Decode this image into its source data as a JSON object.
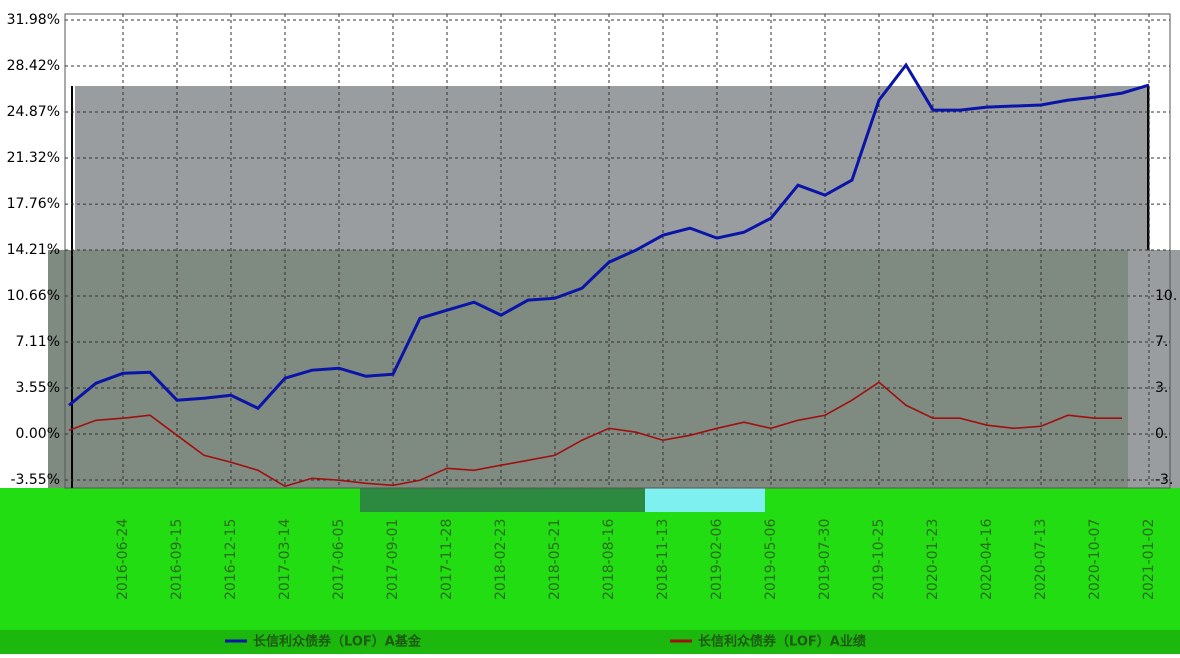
{
  "chart_data": {
    "type": "line",
    "categories": [
      null,
      null,
      "2016-06-24",
      null,
      "2016-09-15",
      null,
      "2016-12-15",
      null,
      "2017-03-14",
      null,
      "2017-06-05",
      null,
      "2017-09-01",
      null,
      "2017-11-28",
      null,
      "2018-02-23",
      null,
      "2018-05-21",
      null,
      "2018-08-16",
      null,
      "2018-11-13",
      null,
      "2019-02-06",
      null,
      "2019-05-06",
      null,
      "2019-07-30",
      null,
      "2019-10-25",
      null,
      "2020-01-23",
      null,
      "2020-04-16",
      null,
      "2020-07-13",
      null,
      "2020-10-07",
      null,
      "2021-01-02"
    ],
    "series": [
      {
        "name": "长信利众债券（LOF）A基金",
        "color": "#0a14a8",
        "values": [
          2.22,
          3.92,
          4.69,
          4.77,
          2.61,
          2.76,
          2.99,
          1.99,
          4.31,
          4.93,
          5.08,
          4.46,
          4.62,
          8.94,
          9.56,
          10.18,
          9.18,
          10.34,
          10.49,
          11.26,
          13.27,
          14.2,
          15.36,
          15.9,
          15.13,
          15.59,
          16.67,
          19.22,
          18.45,
          19.61,
          25.79,
          28.5,
          25.02,
          25.02,
          25.25,
          25.33,
          25.41,
          25.79,
          26.02,
          26.33,
          26.95
        ]
      },
      {
        "name": "长信利众债券（LOF）A业绩",
        "color": "#a01010",
        "values": [
          0.29,
          1.06,
          1.22,
          1.45,
          -0.1,
          -1.64,
          -2.18,
          -2.8,
          -4.04,
          -3.42,
          -3.57,
          -3.81,
          -3.96,
          -3.57,
          -2.65,
          -2.8,
          -2.41,
          -2.03,
          -1.64,
          -0.48,
          0.44,
          0.14,
          -0.48,
          -0.1,
          0.44,
          0.91,
          0.44,
          1.06,
          1.45,
          2.61,
          4.0,
          2.22,
          1.22,
          1.22,
          0.68,
          0.44,
          0.6,
          1.45,
          1.22,
          1.22,
          null
        ]
      }
    ],
    "ylim": [
      -4.17,
      32.44
    ],
    "yticks": [
      {
        "value": 31.98,
        "label": "31.98%"
      },
      {
        "value": 28.42,
        "label": "28.42%"
      },
      {
        "value": 24.87,
        "label": "24.87%"
      },
      {
        "value": 21.32,
        "label": "21.32%"
      },
      {
        "value": 17.76,
        "label": "17.76%"
      },
      {
        "value": 14.21,
        "label": "14.21%"
      },
      {
        "value": 10.66,
        "label": "10.66%"
      },
      {
        "value": 7.11,
        "label": "7.11%"
      },
      {
        "value": 3.55,
        "label": "3.55%"
      },
      {
        "value": 0,
        "label": "0.00%"
      },
      {
        "value": -3.55,
        "label": "-3.55%"
      }
    ],
    "y2lim": [
      -4.17,
      32.44
    ],
    "y2ticks": [
      {
        "value": 10.66,
        "label": "10."
      },
      {
        "value": 7.11,
        "label": "7."
      },
      {
        "value": 3.55,
        "label": "3."
      },
      {
        "value": 0,
        "label": "0."
      },
      {
        "value": -3.55,
        "label": "-3."
      }
    ],
    "grid": true
  }
}
